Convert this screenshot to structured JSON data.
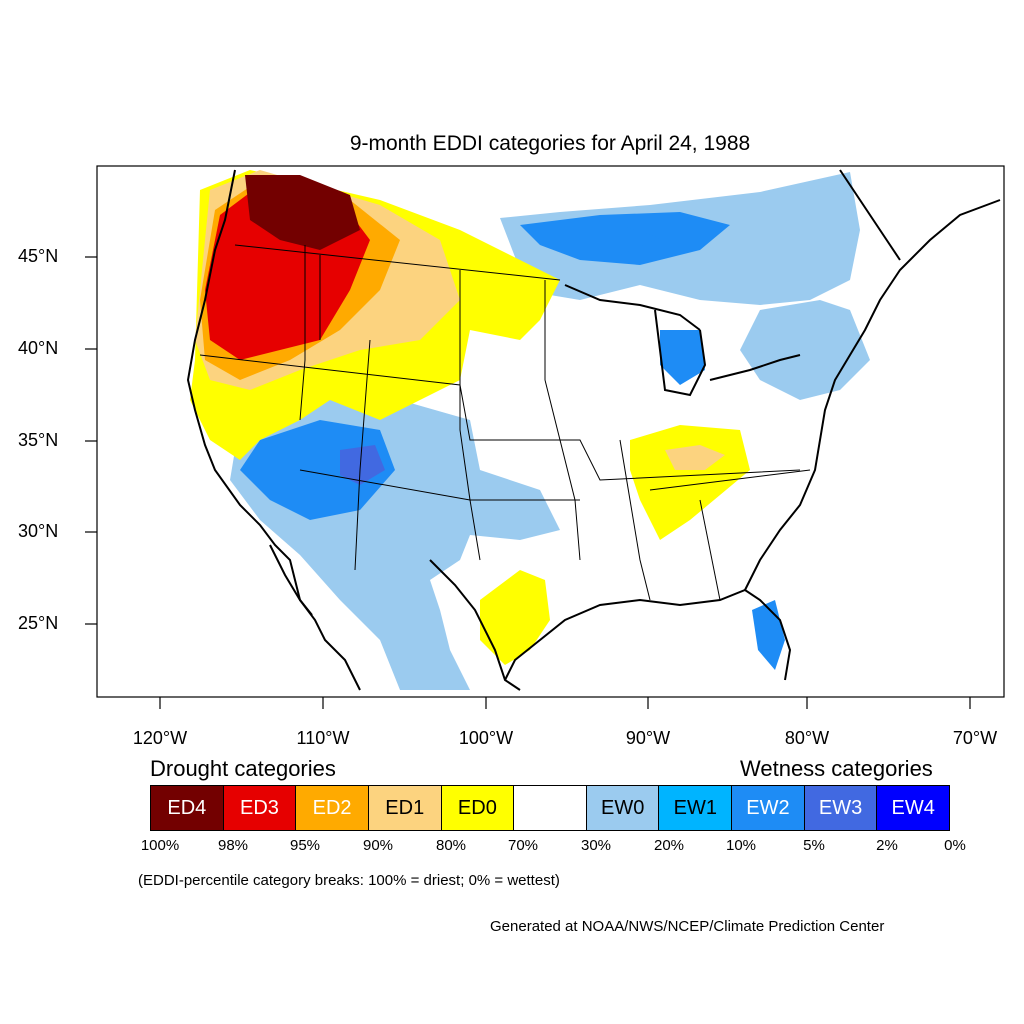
{
  "title": "9-month EDDI categories for April 24, 1988",
  "lat_labels": [
    "45°N",
    "40°N",
    "35°N",
    "30°N",
    "25°N"
  ],
  "lon_labels": [
    "120°W",
    "110°W",
    "100°W",
    "90°W",
    "80°W",
    "70°W"
  ],
  "legend": {
    "drought_heading": "Drought categories",
    "wetness_heading": "Wetness categories",
    "categories": [
      {
        "label": "ED4",
        "color": "#730000"
      },
      {
        "label": "ED3",
        "color": "#e60000"
      },
      {
        "label": "ED2",
        "color": "#ffaa00"
      },
      {
        "label": "ED1",
        "color": "#fcd37f"
      },
      {
        "label": "ED0",
        "color": "#ffff00"
      },
      {
        "label": "",
        "color": "#ffffff"
      },
      {
        "label": "EW0",
        "color": "#9bcbef"
      },
      {
        "label": "EW1",
        "color": "#00b4ff"
      },
      {
        "label": "EW2",
        "color": "#1e8cf5"
      },
      {
        "label": "EW3",
        "color": "#4169e1"
      },
      {
        "label": "EW4",
        "color": "#0000ff"
      }
    ],
    "breaks": [
      "100%",
      "98%",
      "95%",
      "90%",
      "80%",
      "70%",
      "30%",
      "20%",
      "10%",
      "5%",
      "2%",
      "0%"
    ]
  },
  "note": "(EDDI-percentile category breaks: 100% = driest; 0% = wettest)",
  "credit": "Generated at NOAA/NWS/NCEP/Climate Prediction Center"
}
